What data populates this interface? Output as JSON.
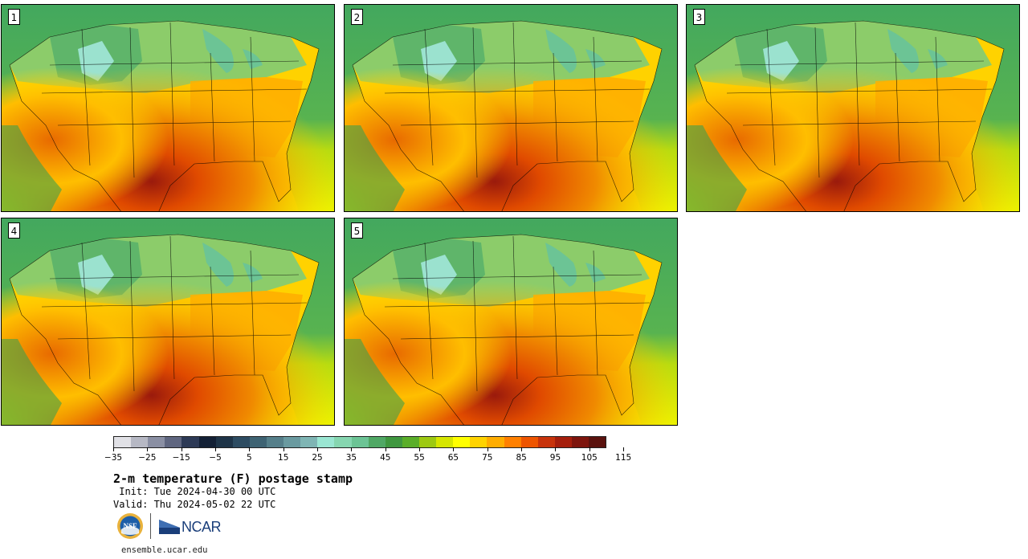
{
  "panels": [
    {
      "id": "1",
      "label": "1"
    },
    {
      "id": "2",
      "label": "2"
    },
    {
      "id": "3",
      "label": "3"
    },
    {
      "id": "4",
      "label": "4"
    },
    {
      "id": "5",
      "label": "5"
    }
  ],
  "colorbar": {
    "ticks": [
      "−35",
      "−25",
      "−15",
      "−5",
      "5",
      "15",
      "25",
      "35",
      "45",
      "55",
      "65",
      "75",
      "85",
      "95",
      "105",
      "115"
    ],
    "colors": [
      "#e1e1e6",
      "#b6b8c4",
      "#8a8fa3",
      "#5f6680",
      "#2d3a56",
      "#132035",
      "#1e3448",
      "#2d4c62",
      "#3e6373",
      "#557f8a",
      "#6a9aa0",
      "#7fb5b4",
      "#9ae6d2",
      "#86d6b0",
      "#6cc495",
      "#50a865",
      "#3f973f",
      "#5aae29",
      "#9dc912",
      "#d6e600",
      "#ffff00",
      "#ffd300",
      "#ffad00",
      "#ff8000",
      "#ee5500",
      "#c8330b",
      "#a51e0c",
      "#7e150d",
      "#5a120e"
    ]
  },
  "title": "2-m temperature (F) postage stamp",
  "init": " Init: Tue 2024-04-30 00 UTC",
  "valid": "Valid: Thu 2024-05-02 22 UTC",
  "logos": {
    "nsf": "NSF",
    "ncar": "NCAR"
  },
  "url": "ensemble.ucar.edu",
  "colors": {
    "ocean_north": "#43a85e",
    "ocean_south": "#eef200",
    "land_hot": "#f08a00",
    "land_cool": "#8ccc6a"
  }
}
